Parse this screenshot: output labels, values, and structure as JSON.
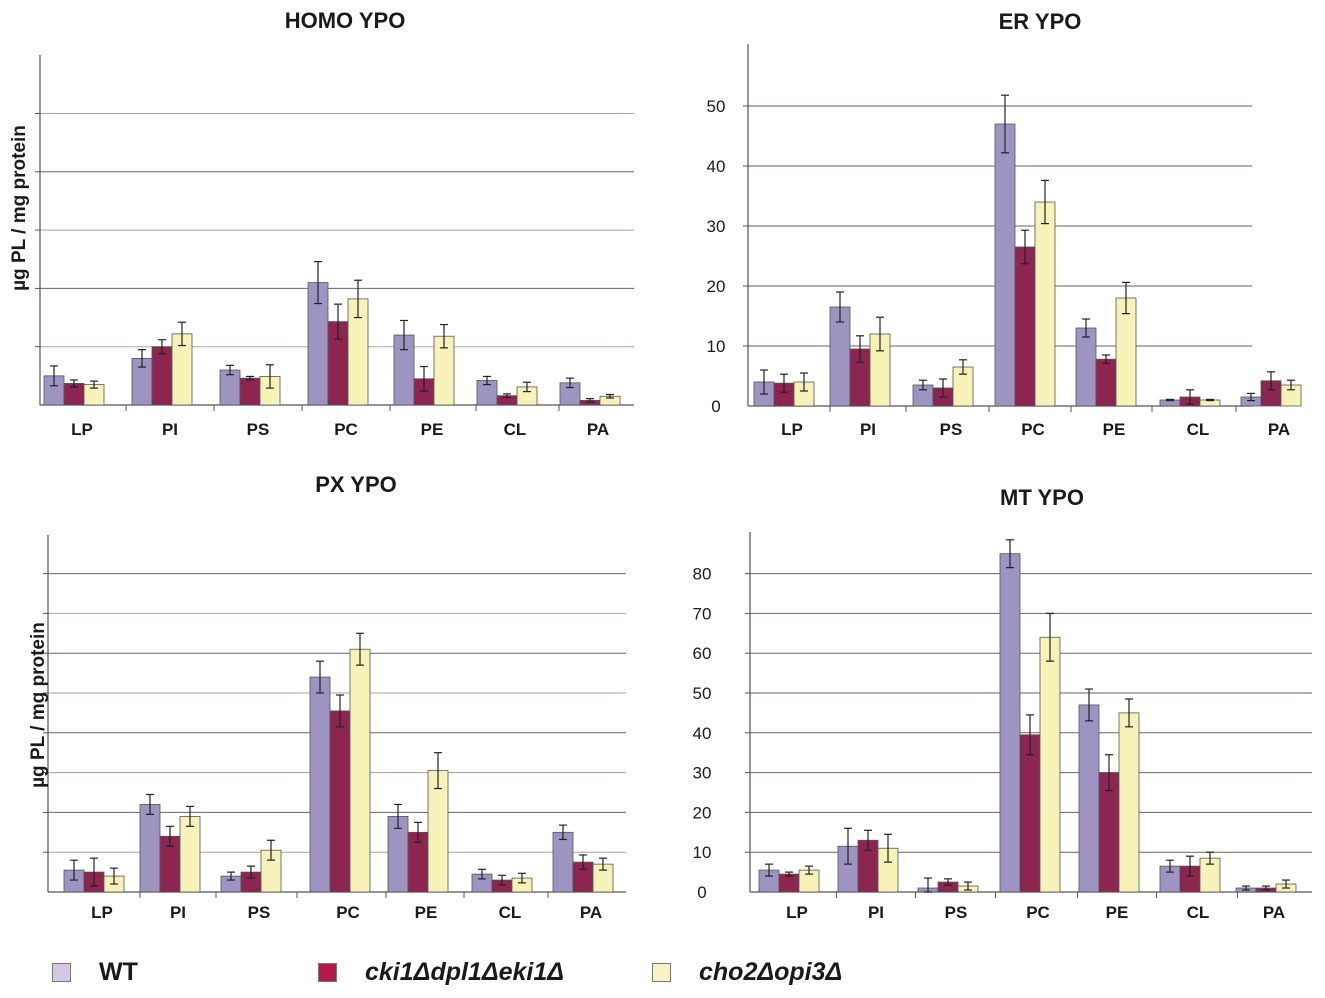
{
  "colors": {
    "wt": "#9d94c2",
    "mut1": "#8c2550",
    "mut2": "#f7f2b8",
    "grid_dark": "#7a5a64",
    "axis": "#555555"
  },
  "legend": [
    {
      "label": "WT",
      "color": "#d4c8e2",
      "italic": false
    },
    {
      "label": "cki1Δdpl1Δeki1Δ",
      "color": "#b8194a",
      "italic": true
    },
    {
      "label": "cho2Δopi3Δ",
      "color": "#f8f3c4",
      "italic": true
    }
  ],
  "chart_data": [
    {
      "type": "bar",
      "title": "HOMO YPO",
      "ylabel": "µg PL / mg protein",
      "show_yticks": false,
      "ylim": [
        0,
        60
      ],
      "grid_values": [
        10,
        20,
        30,
        40,
        50
      ],
      "categories": [
        "LP",
        "PI",
        "PS",
        "PC",
        "PE",
        "CL",
        "PA"
      ],
      "series": [
        {
          "values": [
            5,
            8,
            6,
            21,
            12,
            4.2,
            3.8
          ],
          "errors": [
            1.7,
            1.5,
            0.8,
            3.6,
            2.5,
            0.7,
            0.8
          ]
        },
        {
          "values": [
            3.7,
            10,
            4.6,
            14.3,
            4.5,
            1.6,
            0.8
          ],
          "errors": [
            0.6,
            1.2,
            0.3,
            3,
            2.1,
            0.3,
            0.3
          ]
        },
        {
          "values": [
            3.5,
            12.2,
            4.9,
            18.2,
            11.8,
            3.1,
            1.5
          ],
          "errors": [
            0.6,
            2,
            2,
            3.2,
            2,
            0.8,
            0.3
          ]
        }
      ]
    },
    {
      "type": "bar",
      "title": "ER YPO",
      "ylabel": "",
      "show_yticks": true,
      "ylim": [
        0,
        60
      ],
      "yticks": [
        0,
        10,
        20,
        30,
        40,
        50
      ],
      "categories": [
        "LP",
        "PI",
        "PS",
        "PC",
        "PE",
        "CL",
        "PA"
      ],
      "series": [
        {
          "values": [
            4,
            16.5,
            3.5,
            47,
            13,
            1,
            1.5
          ],
          "errors": [
            2,
            2.5,
            0.8,
            4.8,
            1.5,
            0.1,
            0.6
          ]
        },
        {
          "values": [
            3.8,
            9.5,
            3,
            26.5,
            7.8,
            1.5,
            4.2
          ],
          "errors": [
            1.5,
            2.2,
            1.5,
            2.8,
            0.7,
            1.2,
            1.5
          ]
        },
        {
          "values": [
            4,
            12,
            6.5,
            34,
            18,
            1,
            3.5
          ],
          "errors": [
            1.5,
            2.8,
            1.2,
            3.6,
            2.6,
            0.1,
            0.8
          ]
        }
      ]
    },
    {
      "type": "bar",
      "title": "PX YPO",
      "ylabel": "µg PL / mg protein",
      "show_yticks": false,
      "ylim": [
        0,
        90
      ],
      "grid_values": [
        10,
        20,
        30,
        40,
        50,
        60,
        70,
        80
      ],
      "categories": [
        "LP",
        "PI",
        "PS",
        "PC",
        "PE",
        "CL",
        "PA"
      ],
      "series": [
        {
          "values": [
            5.5,
            22,
            4,
            54,
            19,
            4.5,
            15
          ],
          "errors": [
            2.5,
            2.5,
            1,
            4,
            3,
            1.2,
            1.8
          ]
        },
        {
          "values": [
            5,
            14,
            5,
            45.5,
            15,
            3,
            7.5
          ],
          "errors": [
            3.5,
            2.5,
            1.5,
            4,
            2.5,
            1.2,
            1.8
          ]
        },
        {
          "values": [
            4,
            19,
            10.5,
            61,
            30.5,
            3.5,
            7
          ],
          "errors": [
            2,
            2.5,
            2.5,
            4,
            4.5,
            1.2,
            1.5
          ]
        }
      ]
    },
    {
      "type": "bar",
      "title": "MT YPO",
      "ylabel": "",
      "show_yticks": true,
      "ylim": [
        0,
        90
      ],
      "yticks": [
        0,
        10,
        20,
        30,
        40,
        50,
        60,
        70,
        80
      ],
      "categories": [
        "LP",
        "PI",
        "PS",
        "PC",
        "PE",
        "CL",
        "PA"
      ],
      "series": [
        {
          "values": [
            5.5,
            11.5,
            1,
            85,
            47,
            6.5,
            1
          ],
          "errors": [
            1.5,
            4.5,
            2.5,
            3.5,
            4,
            1.5,
            0.5
          ]
        },
        {
          "values": [
            4.5,
            13,
            2.5,
            39.5,
            30,
            6.5,
            1
          ],
          "errors": [
            0.5,
            2.5,
            0.8,
            5,
            4.5,
            2.5,
            0.5
          ]
        },
        {
          "values": [
            5.5,
            11,
            1.5,
            64,
            45,
            8.5,
            2
          ],
          "errors": [
            1,
            3.5,
            1,
            6,
            3.5,
            1.5,
            1
          ]
        }
      ]
    }
  ]
}
